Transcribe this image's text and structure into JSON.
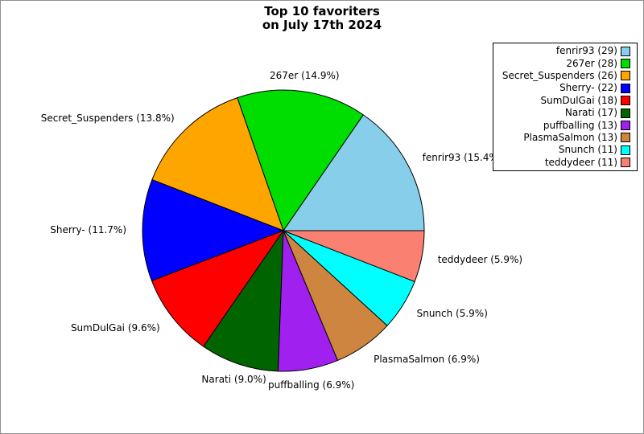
{
  "title": {
    "line1": "Top 10 favoriters",
    "line2": "on July 17th 2024"
  },
  "chart_data": {
    "type": "pie",
    "title": "Top 10 favoriters on July 17th 2024",
    "start_angle_deg": 0,
    "direction": "counterclockwise",
    "legend_position": "upper-right",
    "slices": [
      {
        "name": "fenrir93",
        "count": 29,
        "percent": 15.4,
        "color": "#87CEEB",
        "pie_label": "fenrir93 (15.4%)",
        "legend_label": "fenrir93 (29)"
      },
      {
        "name": "267er",
        "count": 28,
        "percent": 14.9,
        "color": "#00DD00",
        "pie_label": "267er (14.9%)",
        "legend_label": "267er (28)"
      },
      {
        "name": "Secret_Suspenders",
        "count": 26,
        "percent": 13.8,
        "color": "#FFA500",
        "pie_label": "Secret_Suspenders (13.8%)",
        "legend_label": "Secret_Suspenders (26)"
      },
      {
        "name": "Sherry-",
        "count": 22,
        "percent": 11.7,
        "color": "#0000FF",
        "pie_label": "Sherry- (11.7%)",
        "legend_label": "Sherry- (22)"
      },
      {
        "name": "SumDulGai",
        "count": 18,
        "percent": 9.6,
        "color": "#FF0000",
        "pie_label": "SumDulGai (9.6%)",
        "legend_label": "SumDulGai (18)"
      },
      {
        "name": "Narati",
        "count": 17,
        "percent": 9.0,
        "color": "#006400",
        "pie_label": "Narati (9.0%)",
        "legend_label": "Narati (17)"
      },
      {
        "name": "puffballing",
        "count": 13,
        "percent": 6.9,
        "color": "#A020F0",
        "pie_label": "puffballing (6.9%)",
        "legend_label": "puffballing (13)"
      },
      {
        "name": "PlasmaSalmon",
        "count": 13,
        "percent": 6.9,
        "color": "#CD853F",
        "pie_label": "PlasmaSalmon (6.9%)",
        "legend_label": "PlasmaSalmon (13)"
      },
      {
        "name": "Snunch",
        "count": 11,
        "percent": 5.9,
        "color": "#00FFFF",
        "pie_label": "Snunch (5.9%)",
        "legend_label": "Snunch (11)"
      },
      {
        "name": "teddydeer",
        "count": 11,
        "percent": 5.9,
        "color": "#FA8072",
        "pie_label": "teddydeer (5.9%)",
        "legend_label": "teddydeer (11)"
      }
    ]
  }
}
